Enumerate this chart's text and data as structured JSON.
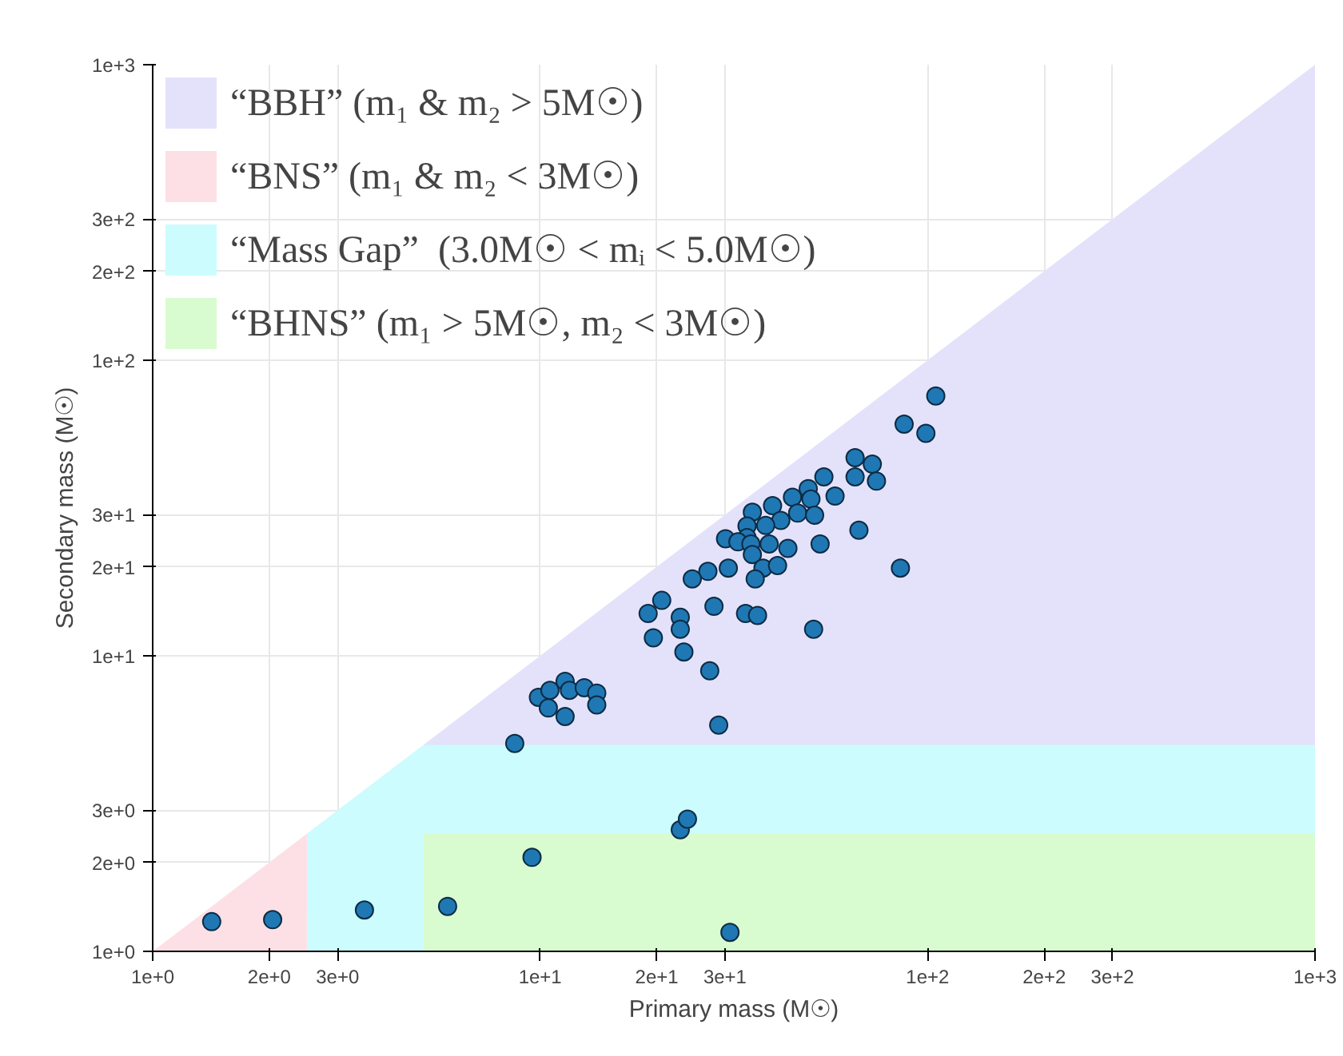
{
  "chart_data": {
    "type": "scatter",
    "xlabel": "Primary mass (M☉)",
    "ylabel": "Secondary mass (M☉)",
    "log": "xy",
    "grid": true,
    "legend": "top left",
    "xlim": [
      1,
      1000
    ],
    "ylim": [
      1,
      1000
    ],
    "xticks": [
      {
        "value": 1,
        "label": "1e+0"
      },
      {
        "value": 2,
        "label": "2e+0"
      },
      {
        "value": 3,
        "label": "3e+0"
      },
      {
        "value": 10,
        "label": "1e+1"
      },
      {
        "value": 20,
        "label": "2e+1"
      },
      {
        "value": 30,
        "label": "3e+1"
      },
      {
        "value": 100,
        "label": "1e+2"
      },
      {
        "value": 200,
        "label": "2e+2"
      },
      {
        "value": 300,
        "label": "3e+2"
      },
      {
        "value": 1000,
        "label": "1e+3"
      }
    ],
    "yticks": [
      {
        "value": 1,
        "label": "1e+0"
      },
      {
        "value": 2,
        "label": "2e+0"
      },
      {
        "value": 3,
        "label": "3e+0"
      },
      {
        "value": 10,
        "label": "1e+1"
      },
      {
        "value": 20,
        "label": "2e+1"
      },
      {
        "value": 30,
        "label": "3e+1"
      },
      {
        "value": 100,
        "label": "1e+2"
      },
      {
        "value": 200,
        "label": "2e+2"
      },
      {
        "value": 300,
        "label": "3e+2"
      },
      {
        "value": 1000,
        "label": "1e+3"
      }
    ],
    "series": [
      {
        "type": "area",
        "name": "“BBH” (m₁ & m₂ > 5M☉)",
        "color": "#e4e2fb",
        "x": [
          5,
          1000
        ],
        "values": [
          5,
          1000
        ]
      },
      {
        "type": "area",
        "name": "“BNS” (m₁ & m₂ < 3M☉)",
        "color": "#fde0e5",
        "x": [
          1,
          2.5
        ],
        "values": [
          1,
          2.5
        ]
      },
      {
        "type": "area",
        "name": "“Mass Gap”  (3.0M☉ < mᵢ < 5.0M☉)",
        "color": "#ccfcfd",
        "x": [
          2.5,
          5,
          1000
        ],
        "values": [
          2.5,
          5,
          5
        ]
      },
      {
        "type": "area",
        "name": "“BHNS” (m₁ > 5M☉, m₂ < 3M☉)",
        "color": "#d8fbd0",
        "x": [
          5,
          1000
        ],
        "values": [
          2.5,
          2.5
        ]
      },
      {
        "color": "#1f78b4",
        "marker": "circle",
        "x": [
          105,
          87,
          99,
          65,
          72,
          65,
          73.8,
          54,
          57.7,
          49.2,
          44.8,
          50,
          39.8,
          46.2,
          51.1,
          41.8,
          35.3,
          38.2,
          34.2,
          34.2,
          30.1,
          32.4,
          35,
          66.5,
          39,
          52.8,
          43.6,
          35.3,
          30.6,
          37.6,
          41,
          35.9,
          27.1,
          24.7,
          20.6,
          19,
          23,
          23,
          28.1,
          33.9,
          36.4,
          19.6,
          23.5,
          27.4,
          50.8,
          85.1,
          28.9,
          8.6,
          9.9,
          10.6,
          10.5,
          11.6,
          11.9,
          11.6,
          13.0,
          14.0,
          14.0,
          1.42,
          2.04,
          3.52,
          5.77,
          9.53,
          23,
          24,
          30.9
        ],
        "values": [
          75.7,
          60.8,
          56.6,
          46.8,
          44.5,
          40.3,
          39,
          40.3,
          34.7,
          36.8,
          34.4,
          33.9,
          32.2,
          30.4,
          29.9,
          28.7,
          30.6,
          27.6,
          27.5,
          25.1,
          24.9,
          24.3,
          23.9,
          26.6,
          23.9,
          23.9,
          23.1,
          22,
          19.8,
          19.8,
          20.2,
          18.2,
          19.3,
          18.2,
          15.4,
          13.9,
          13.5,
          12.3,
          14.7,
          13.9,
          13.7,
          11.5,
          10.3,
          8.9,
          12.3,
          19.8,
          5.83,
          5.05,
          7.24,
          7.64,
          6.66,
          8.2,
          7.64,
          6.23,
          7.8,
          7.48,
          6.82,
          1.26,
          1.28,
          1.38,
          1.42,
          2.08,
          2.58,
          2.8,
          1.16
        ]
      }
    ]
  }
}
